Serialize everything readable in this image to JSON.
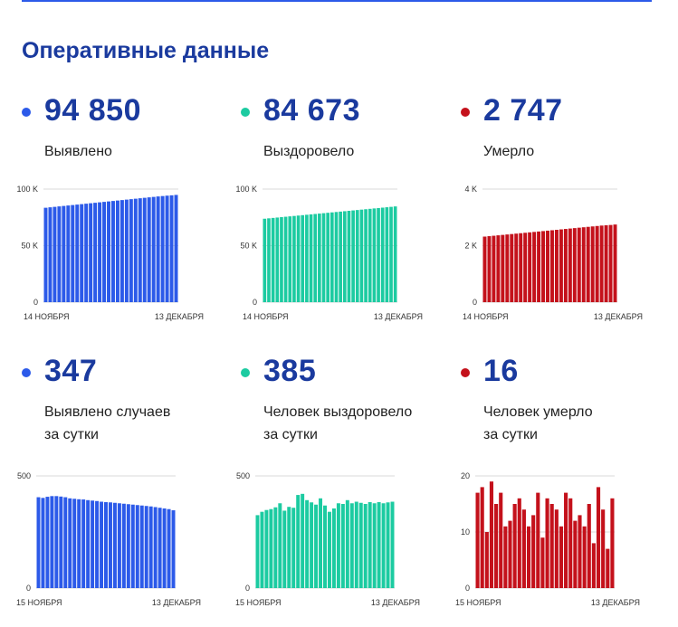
{
  "page_title": "Оперативные данные",
  "colors": {
    "blue": "#2c5ae9",
    "green": "#1ccba1",
    "red": "#c4111b",
    "title": "#1a3a9e"
  },
  "cards": [
    {
      "value": "94 850",
      "label": "Выявлено",
      "color": "#2c5ae9"
    },
    {
      "value": "84 673",
      "label": "Выздоровело",
      "color": "#1ccba1"
    },
    {
      "value": "2 747",
      "label": "Умерло",
      "color": "#c4111b"
    },
    {
      "value": "347",
      "label": "Выявлено случаев\nза сутки",
      "color": "#2c5ae9"
    },
    {
      "value": "385",
      "label": "Человек выздоровело\nза сутки",
      "color": "#1ccba1"
    },
    {
      "value": "16",
      "label": "Человек умерло\nза сутки",
      "color": "#c4111b"
    }
  ],
  "chart_data": [
    {
      "type": "bar",
      "color": "#2c5ae9",
      "ylim": [
        0,
        100000
      ],
      "yticks": [
        0,
        50000,
        100000
      ],
      "ytick_labels": [
        "0",
        "50 K",
        "100 K"
      ],
      "xtick_labels": [
        "14 НОЯБРЯ",
        "13 ДЕКАБРЯ"
      ],
      "values": [
        83500,
        83900,
        84300,
        84700,
        85100,
        85500,
        85900,
        86300,
        86700,
        87100,
        87500,
        87900,
        88300,
        88700,
        89100,
        89500,
        89900,
        90300,
        90700,
        91100,
        91500,
        91900,
        92300,
        92700,
        93100,
        93500,
        93850,
        94200,
        94500,
        94850
      ]
    },
    {
      "type": "bar",
      "color": "#1ccba1",
      "ylim": [
        0,
        100000
      ],
      "yticks": [
        0,
        50000,
        100000
      ],
      "ytick_labels": [
        "0",
        "50 K",
        "100 K"
      ],
      "xtick_labels": [
        "14 НОЯБРЯ",
        "13 ДЕКАБРЯ"
      ],
      "values": [
        73800,
        74150,
        74500,
        74850,
        75200,
        75550,
        75900,
        76250,
        76600,
        76950,
        77300,
        77650,
        78000,
        78350,
        78700,
        79050,
        79400,
        79750,
        80100,
        80450,
        80800,
        81150,
        81500,
        81850,
        82200,
        82550,
        82900,
        83250,
        83600,
        83950,
        84300,
        84673
      ]
    },
    {
      "type": "bar",
      "color": "#c4111b",
      "ylim": [
        0,
        4000
      ],
      "yticks": [
        0,
        2000,
        4000
      ],
      "ytick_labels": [
        "0",
        "2 K",
        "4 K"
      ],
      "xtick_labels": [
        "14 НОЯБРЯ",
        "13 ДЕКАБРЯ"
      ],
      "values": [
        2320,
        2335,
        2350,
        2365,
        2380,
        2395,
        2410,
        2425,
        2440,
        2455,
        2470,
        2485,
        2500,
        2515,
        2530,
        2545,
        2560,
        2575,
        2590,
        2605,
        2620,
        2635,
        2650,
        2665,
        2680,
        2695,
        2710,
        2720,
        2731,
        2747
      ]
    },
    {
      "type": "bar",
      "color": "#2c5ae9",
      "ylim": [
        0,
        500
      ],
      "yticks": [
        0,
        500
      ],
      "ytick_labels": [
        "0",
        "500"
      ],
      "xtick_labels": [
        "15 НОЯБРЯ",
        "13 ДЕКАБРЯ"
      ],
      "values": [
        405,
        402,
        407,
        410,
        410,
        408,
        405,
        400,
        398,
        396,
        395,
        392,
        390,
        388,
        385,
        383,
        382,
        380,
        378,
        376,
        374,
        372,
        370,
        368,
        366,
        364,
        361,
        358,
        355,
        352,
        347
      ]
    },
    {
      "type": "bar",
      "color": "#1ccba1",
      "ylim": [
        0,
        500
      ],
      "yticks": [
        0,
        500
      ],
      "ytick_labels": [
        "0",
        "500"
      ],
      "xtick_labels": [
        "15 НОЯБРЯ",
        "13 ДЕКАБРЯ"
      ],
      "values": [
        325,
        340,
        348,
        352,
        360,
        378,
        345,
        362,
        358,
        415,
        420,
        392,
        382,
        372,
        400,
        368,
        340,
        355,
        378,
        375,
        392,
        378,
        385,
        380,
        375,
        383,
        378,
        383,
        378,
        382,
        385
      ]
    },
    {
      "type": "bar",
      "color": "#c4111b",
      "ylim": [
        0,
        20
      ],
      "yticks": [
        0,
        10,
        20
      ],
      "ytick_labels": [
        "0",
        "10",
        "20"
      ],
      "xtick_labels": [
        "15 НОЯБРЯ",
        "13 ДЕКАБРЯ"
      ],
      "values": [
        17,
        18,
        10,
        19,
        15,
        17,
        11,
        12,
        15,
        16,
        14,
        11,
        13,
        17,
        9,
        16,
        15,
        14,
        11,
        17,
        16,
        12,
        13,
        11,
        15,
        8,
        18,
        14,
        7,
        16
      ]
    }
  ]
}
